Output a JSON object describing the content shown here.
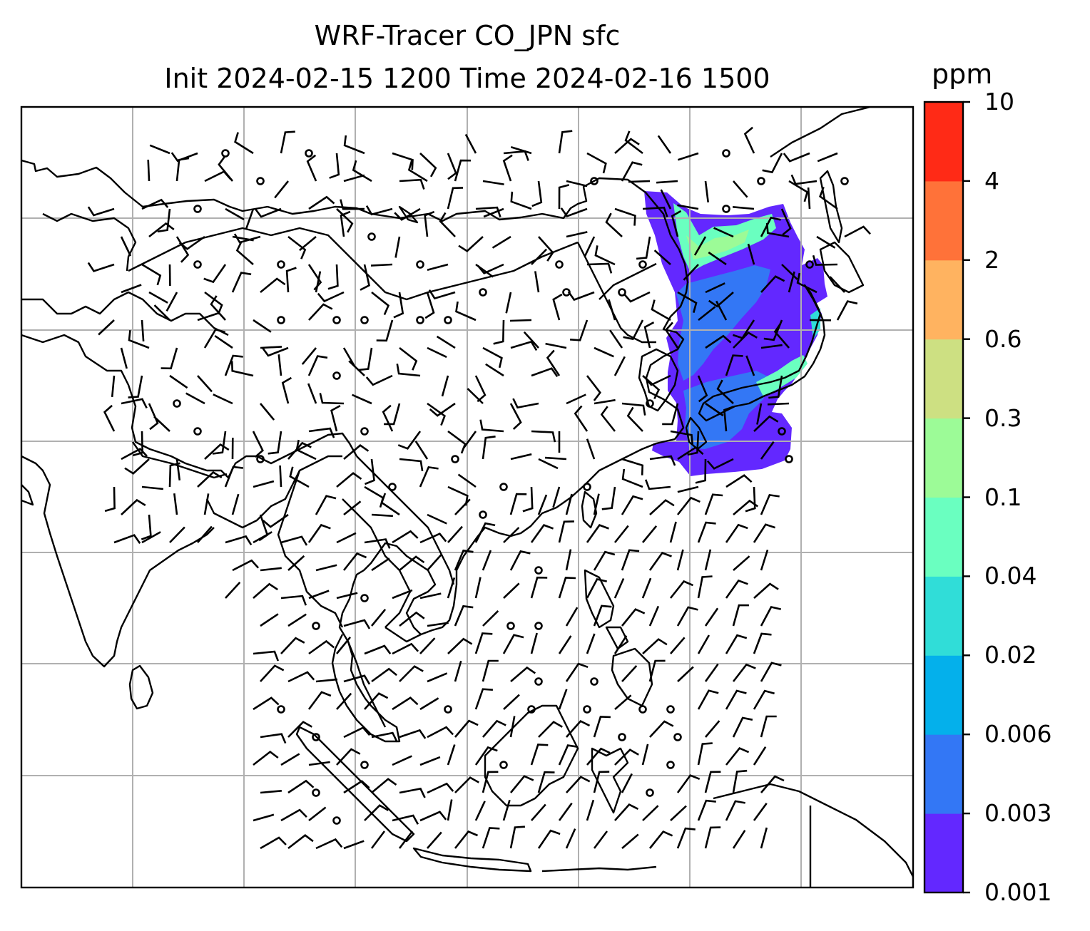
{
  "title": {
    "line1": "WRF-Tracer CO_JPN sfc",
    "line2": "Init 2024-02-15 1200 Time 2024-02-16 1500"
  },
  "colorbar": {
    "units": "ppm",
    "ticks": [
      "0.001",
      "0.003",
      "0.006",
      "0.02",
      "0.04",
      "0.1",
      "0.3",
      "0.6",
      "2",
      "4",
      "10"
    ],
    "colors": [
      "#6328ff",
      "#3377f5",
      "#04b0eb",
      "#30ddd8",
      "#6affc0",
      "#9cfb97",
      "#cde082",
      "#ffb360",
      "#ff7239",
      "#ff2a16"
    ]
  },
  "map": {
    "frame_color": "#000000",
    "grid_color": "#b0b0b0",
    "wind_barbs": "surface wind barbs (black)",
    "plume_levels": [
      "0.001",
      "0.003",
      "0.02",
      "0.04",
      "0.1"
    ]
  }
}
